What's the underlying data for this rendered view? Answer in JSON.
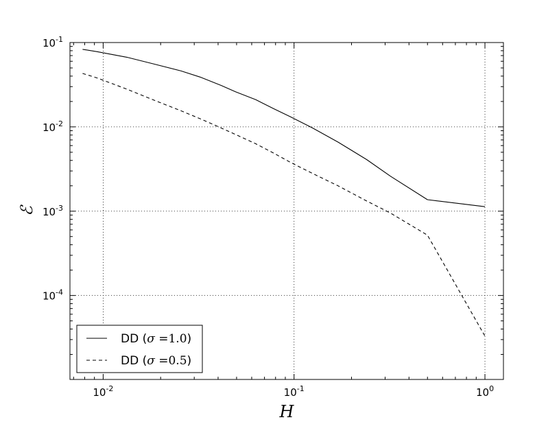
{
  "chart_data": {
    "type": "line",
    "xlabel": "H",
    "ylabel": "ℰ",
    "xscale": "log",
    "yscale": "log",
    "xlim": [
      0.0067,
      1.25
    ],
    "ylim": [
      1.01e-05,
      0.1
    ],
    "grid": true,
    "legend_position": "bottom-left",
    "x_ticks": [
      {
        "base": "10",
        "exp": "-2",
        "value": 0.01
      },
      {
        "base": "10",
        "exp": "-1",
        "value": 0.1
      },
      {
        "base": "10",
        "exp": "0",
        "value": 1
      }
    ],
    "y_ticks": [
      {
        "base": "10",
        "exp": "-1",
        "value": 0.1
      },
      {
        "base": "10",
        "exp": "-2",
        "value": 0.01
      },
      {
        "base": "10",
        "exp": "-3",
        "value": 0.001
      },
      {
        "base": "10",
        "exp": "-4",
        "value": 0.0001
      }
    ],
    "series": [
      {
        "legend": {
          "prefix": "DD (",
          "symbol": "σ",
          "eq": " =",
          "value": "1.0",
          "suffix": ")"
        },
        "style": "solid",
        "color": "#000000",
        "x": [
          0.0078,
          0.0093,
          0.0133,
          0.0182,
          0.0256,
          0.0322,
          0.0415,
          0.0495,
          0.063,
          0.078,
          0.0956,
          0.125,
          0.17,
          0.24,
          0.32,
          0.5,
          1.0
        ],
        "y": [
          0.083,
          0.078,
          0.067,
          0.056,
          0.046,
          0.039,
          0.031,
          0.026,
          0.021,
          0.0165,
          0.0132,
          0.0097,
          0.0066,
          0.0041,
          0.0026,
          0.00137,
          0.00113
        ]
      },
      {
        "legend": {
          "prefix": "DD (",
          "symbol": "σ",
          "eq": " =",
          "value": "0.5",
          "suffix": ")"
        },
        "style": "dashed",
        "color": "#000000",
        "x": [
          0.0078,
          0.0093,
          0.0133,
          0.0182,
          0.0256,
          0.0322,
          0.0415,
          0.0495,
          0.063,
          0.078,
          0.0956,
          0.125,
          0.17,
          0.24,
          0.32,
          0.5,
          1.0
        ],
        "y": [
          0.043,
          0.038,
          0.028,
          0.021,
          0.0155,
          0.0125,
          0.0097,
          0.0081,
          0.0063,
          0.0049,
          0.0038,
          0.0028,
          0.002,
          0.00132,
          0.00095,
          0.00052,
          3.3e-05
        ]
      }
    ]
  }
}
